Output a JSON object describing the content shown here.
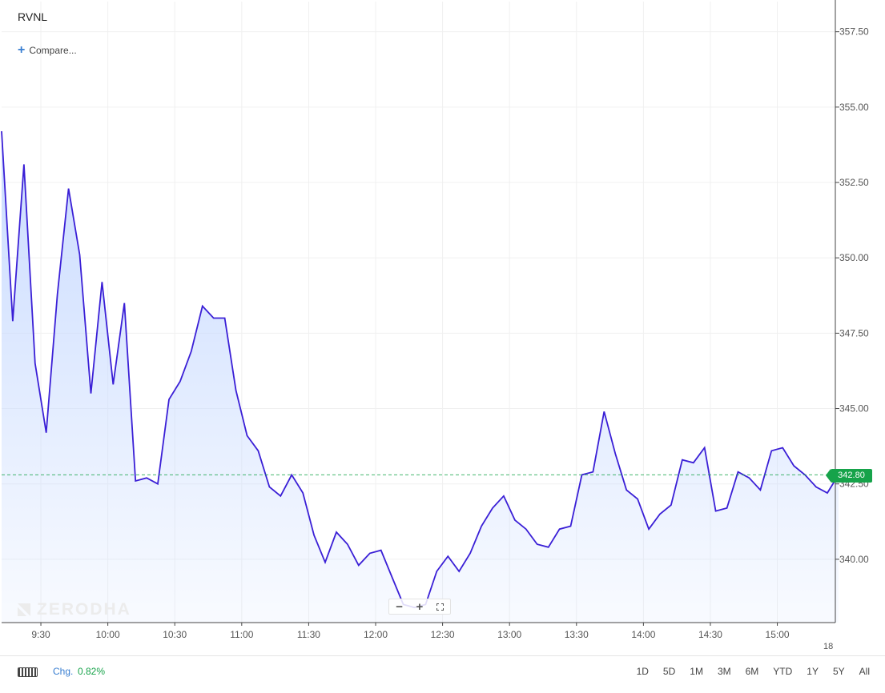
{
  "header": {
    "symbol": "RVNL",
    "compare_label": "Compare..."
  },
  "watermark": {
    "brand": "ZERODHA"
  },
  "zoom_controls": {
    "zoom_out": "−",
    "zoom_in": "+",
    "fullscreen": "fullscreen-icon"
  },
  "footer": {
    "keyboard_icon": "keyboard-icon",
    "chg_label": "Chg.",
    "chg_value": "0.82%",
    "ranges": [
      "1D",
      "5D",
      "1M",
      "3M",
      "6M",
      "YTD",
      "1Y",
      "5Y",
      "All"
    ]
  },
  "chart_data": {
    "type": "area",
    "line_color": "#3a1fd6",
    "fill_color": "#c9dbff",
    "current_price_line_color": "#16a34a",
    "current_price": 342.8,
    "current_price_label": "342.80",
    "y_ticks": [
      "340.00",
      "342.50",
      "345.00",
      "347.50",
      "350.00",
      "352.50",
      "355.00",
      "357.50"
    ],
    "y_tick_values": [
      340,
      342.5,
      345,
      347.5,
      350,
      352.5,
      355,
      357.5
    ],
    "ylim": [
      337.9,
      358.5
    ],
    "x_ticks": [
      "9:30",
      "10:00",
      "10:30",
      "11:00",
      "11:30",
      "12:00",
      "12:30",
      "13:00",
      "13:30",
      "14:00",
      "14:30",
      "15:00"
    ],
    "x_tick_minutes": [
      570,
      600,
      630,
      660,
      690,
      720,
      750,
      780,
      810,
      840,
      870,
      900
    ],
    "x_range_minutes": [
      552.4,
      926
    ],
    "x_edge_label": "18",
    "grid": true,
    "series": [
      {
        "interval_minutes": 5,
        "start_minute": 552.4,
        "values": [
          354.2,
          347.9,
          353.1,
          346.5,
          344.2,
          348.8,
          352.3,
          350.1,
          345.5,
          349.2,
          345.8,
          348.5,
          342.6,
          342.7,
          342.5,
          345.3,
          345.9,
          346.9,
          348.4,
          348.0,
          348.0,
          345.6,
          344.1,
          343.6,
          342.4,
          342.1,
          342.8,
          342.2,
          340.8,
          339.9,
          340.9,
          340.5,
          339.8,
          340.2,
          340.3,
          339.4,
          338.5,
          338.4,
          338.5,
          339.6,
          340.1,
          339.6,
          340.2,
          341.1,
          341.7,
          342.1,
          341.3,
          341.0,
          340.5,
          340.4,
          341.0,
          341.1,
          342.8,
          342.9,
          344.9,
          343.5,
          342.3,
          342.0,
          341.0,
          341.5,
          341.8,
          343.3,
          343.2,
          343.7,
          341.6,
          341.7,
          342.9,
          342.7,
          342.3,
          343.6,
          343.7,
          343.1,
          342.8,
          342.4,
          342.2,
          342.8
        ]
      }
    ]
  }
}
